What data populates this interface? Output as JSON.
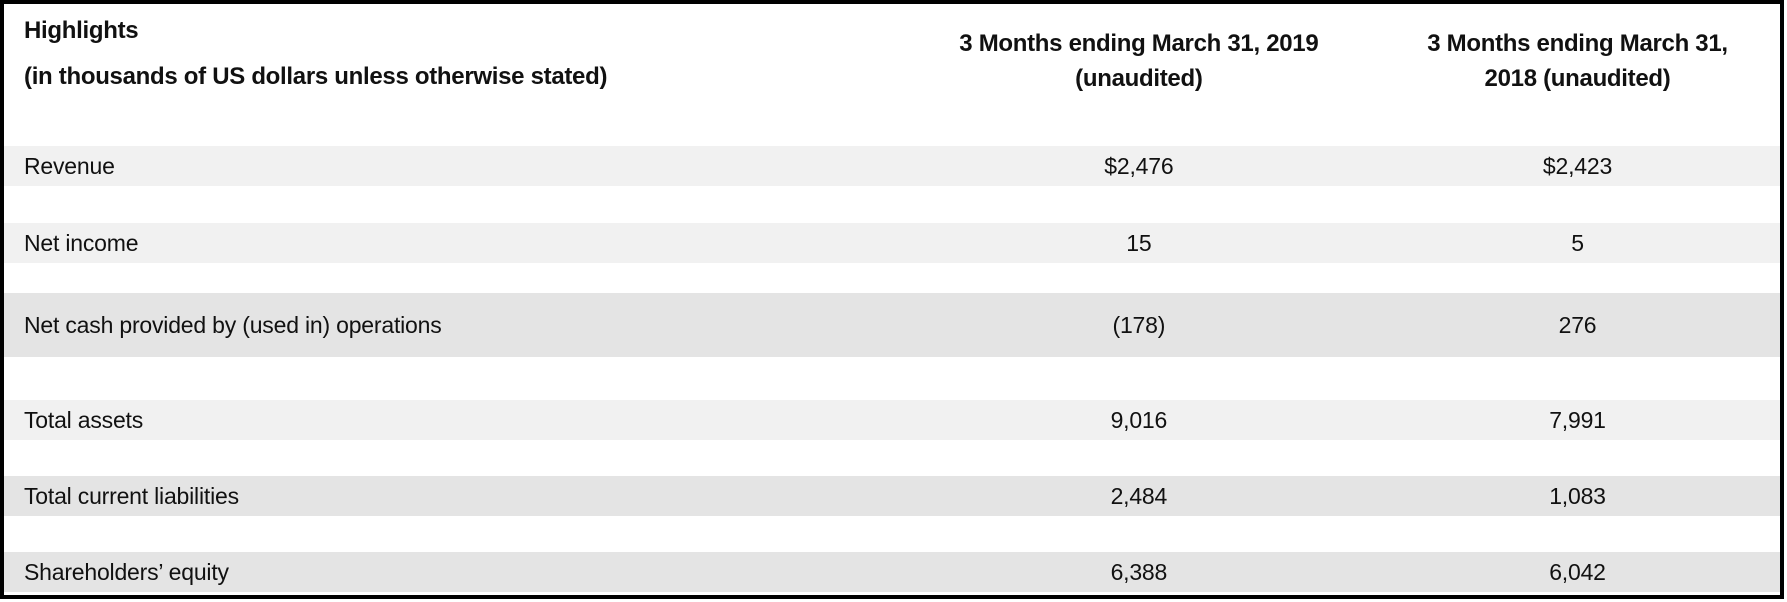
{
  "table": {
    "title": "Highlights",
    "subtitle": "(in thousands of US dollars unless otherwise stated)",
    "columns": [
      {
        "line1": "3 Months ending March 31, 2019",
        "line2": "(unaudited)"
      },
      {
        "line1": "3 Months ending March 31,",
        "line2": "2018 (unaudited)"
      }
    ],
    "rows": [
      {
        "label": "Revenue",
        "y2019": "$2,476",
        "y2018": "$2,423"
      },
      {
        "label": "Net income",
        "y2019": "15",
        "y2018": "5"
      },
      {
        "label": "Net cash provided by (used in) operations",
        "y2019": "(178)",
        "y2018": "276"
      },
      {
        "label": "Total assets",
        "y2019": "9,016",
        "y2018": "7,991"
      },
      {
        "label": "Total current liabilities",
        "y2019": "2,484",
        "y2018": "1,083"
      },
      {
        "label": "Shareholders’ equity",
        "y2019": "6,388",
        "y2018": "6,042"
      }
    ],
    "colors": {
      "band_light": "#f1f1f1",
      "band_dark": "#e4e4e4",
      "border": "#000000",
      "text": "#111111"
    }
  }
}
